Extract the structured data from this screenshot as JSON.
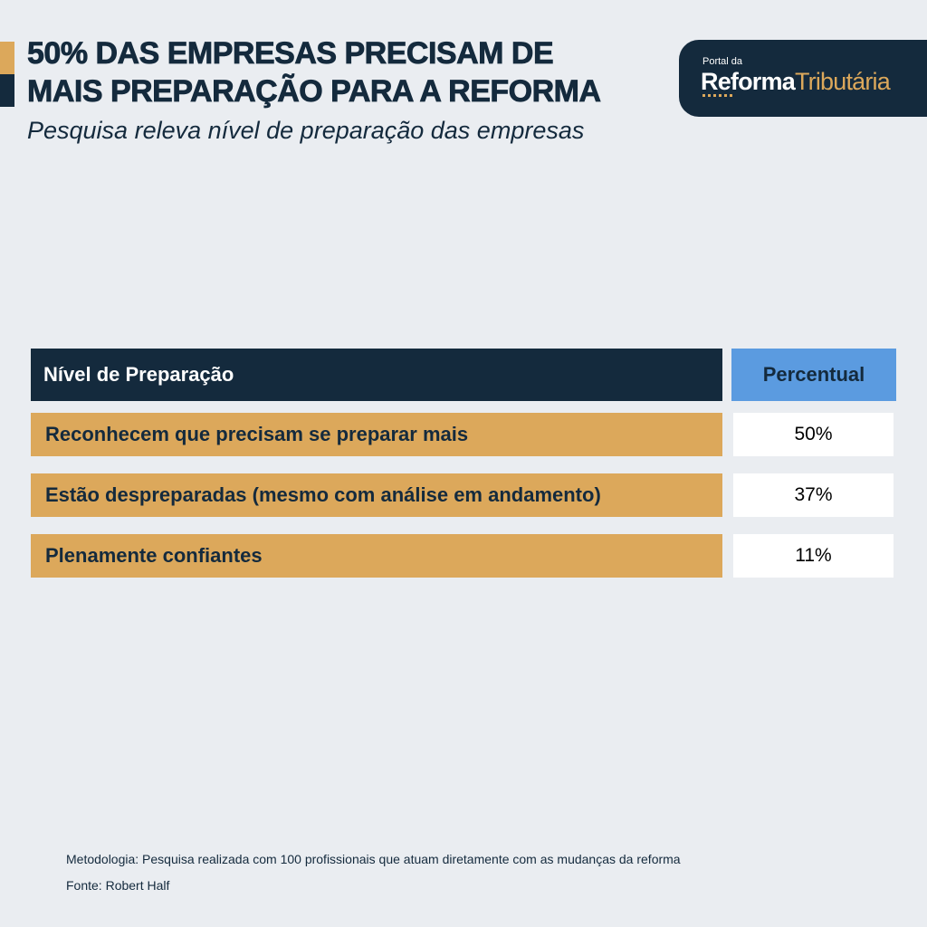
{
  "header": {
    "title_line1": "50% DAS EMPRESAS PRECISAM DE",
    "title_line2": "MAIS PREPARAÇÃO PARA A REFORMA",
    "subtitle": "Pesquisa releva nível de preparação das empresas"
  },
  "logo": {
    "small_text": "Portal da",
    "word1": "Reforma",
    "word2": "Tributária"
  },
  "colors": {
    "navy": "#142a3d",
    "gold": "#dca85b",
    "blue": "#5b9be0",
    "background": "#eaedf1"
  },
  "chart_data": {
    "type": "table",
    "columns": [
      "Nível de Preparação",
      "Percentual"
    ],
    "rows": [
      {
        "label": "Reconhecem que precisam se preparar mais",
        "value": "50%"
      },
      {
        "label": "Estão despreparadas (mesmo com análise em andamento)",
        "value": "37%"
      },
      {
        "label": "Plenamente confiantes",
        "value": "11%"
      }
    ]
  },
  "footer": {
    "methodology": "Metodologia: Pesquisa realizada com 100 profissionais que atuam diretamente com as mudanças da reforma",
    "source": "Fonte: Robert Half"
  }
}
